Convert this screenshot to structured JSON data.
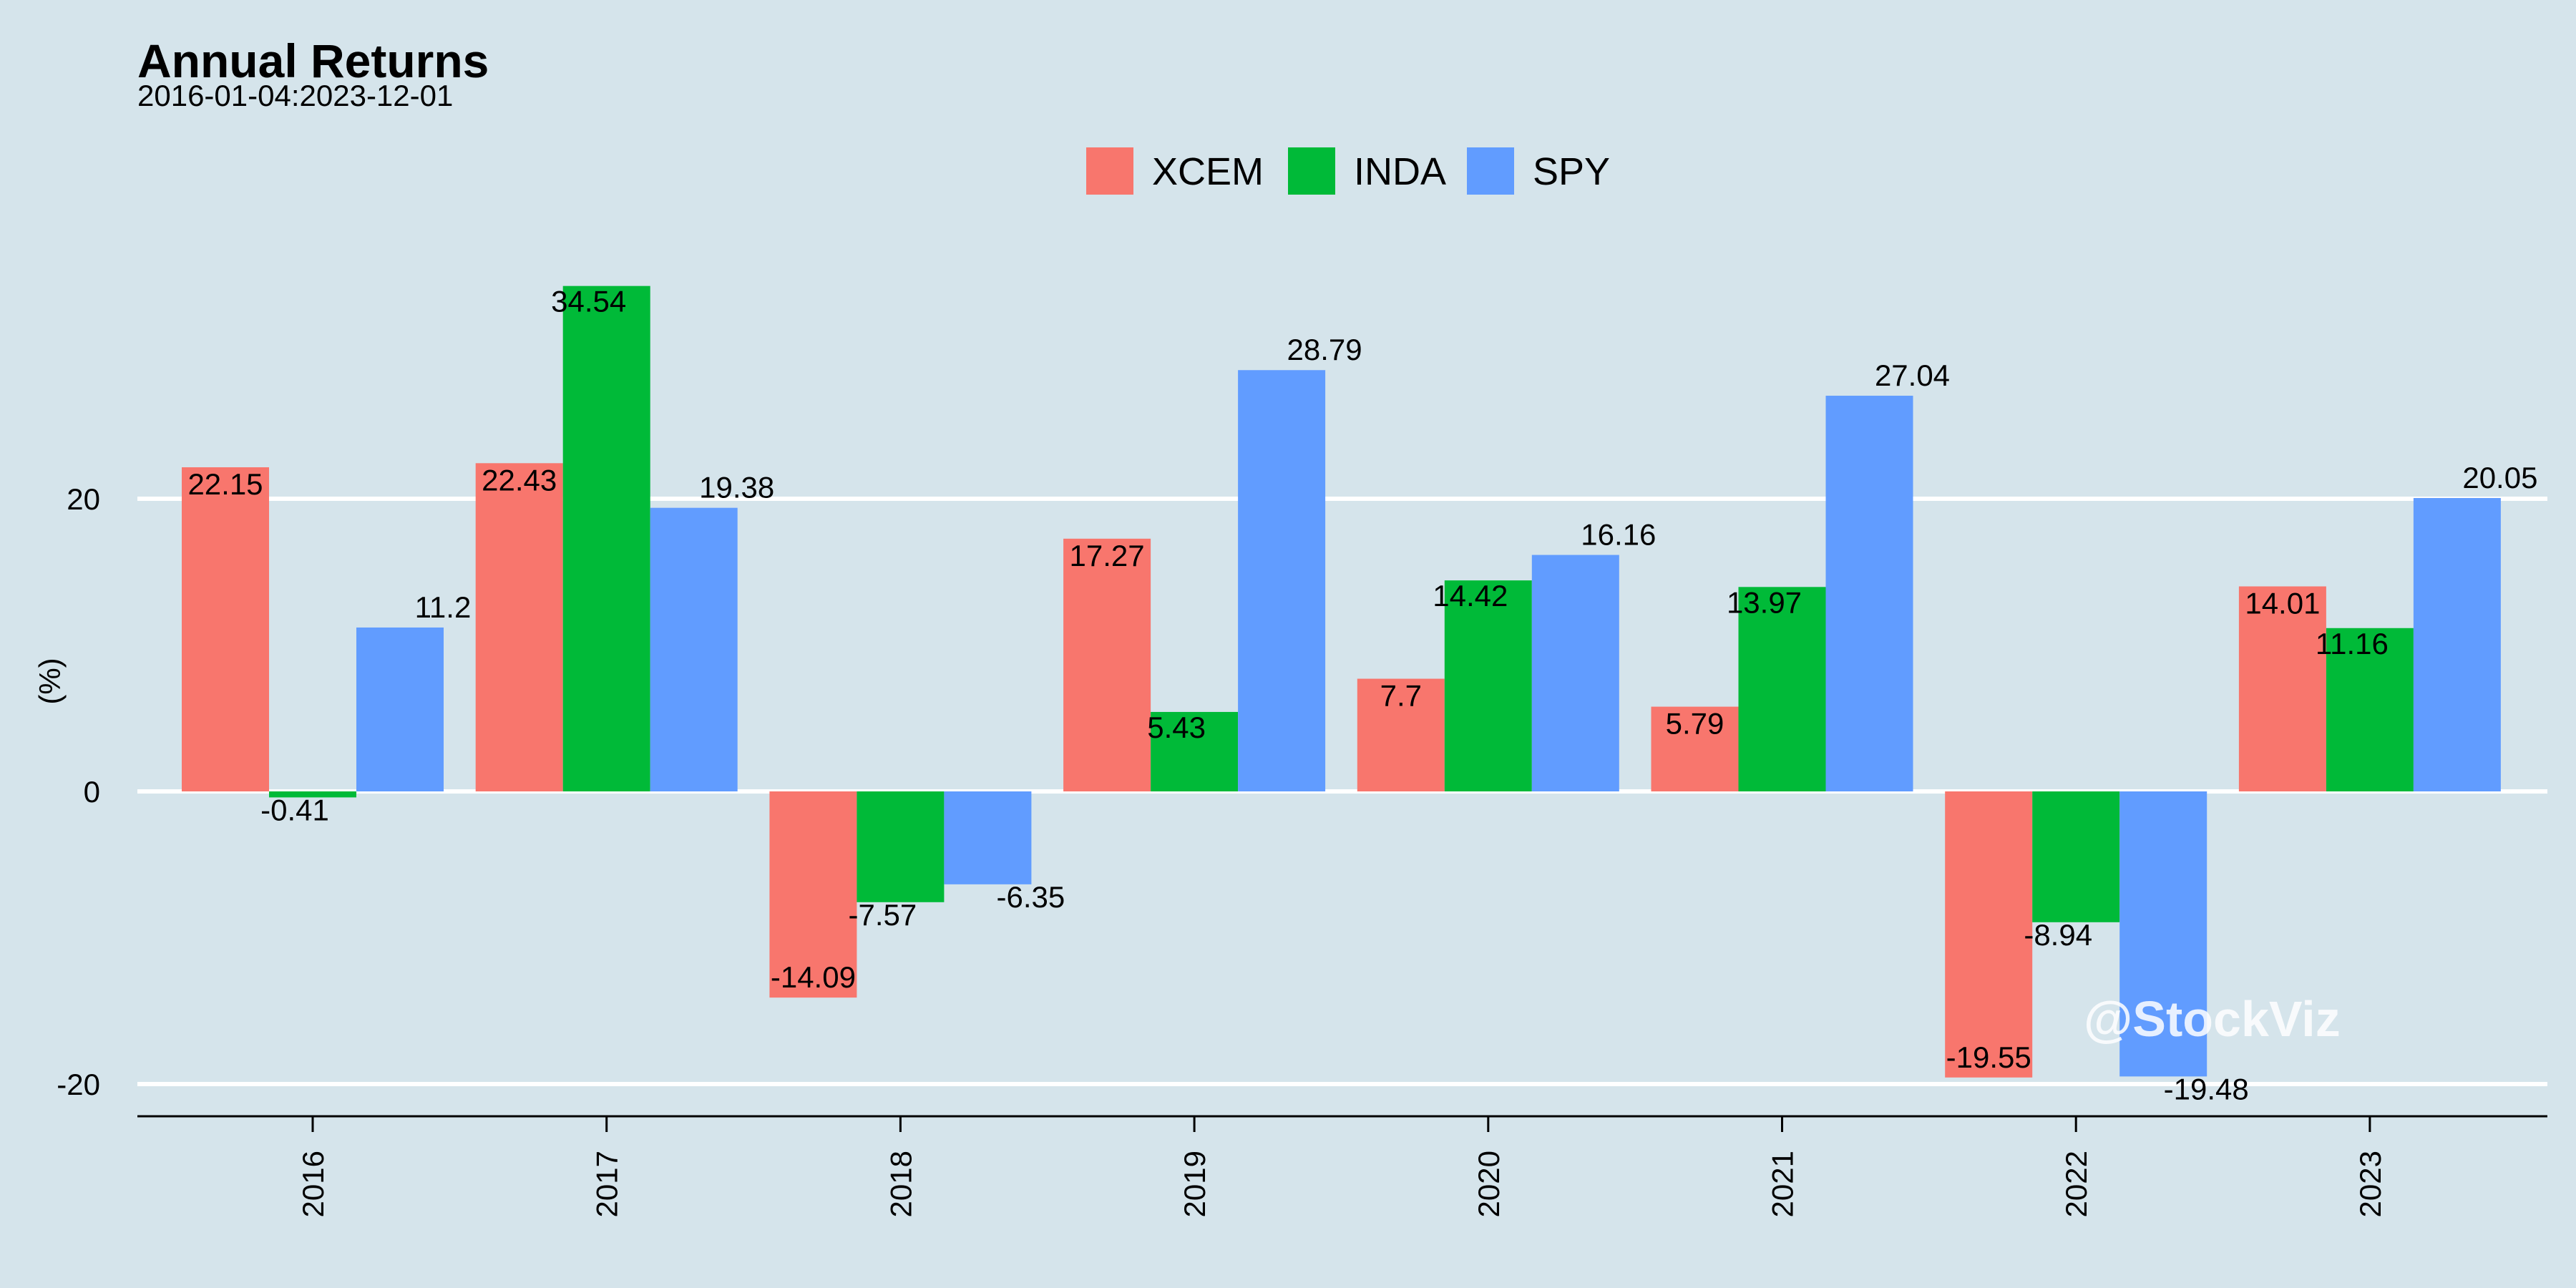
{
  "chart_data": {
    "type": "bar",
    "title": "Annual Returns",
    "subtitle": "2016-01-04:2023-12-01",
    "ylabel": "(%)",
    "xlabel": "",
    "categories": [
      "2016",
      "2017",
      "2018",
      "2019",
      "2020",
      "2021",
      "2022",
      "2023"
    ],
    "series": [
      {
        "name": "XCEM",
        "color": "#f8766d",
        "values": [
          22.15,
          22.43,
          -14.09,
          17.27,
          7.7,
          5.79,
          -19.55,
          14.01
        ]
      },
      {
        "name": "INDA",
        "color": "#00ba38",
        "values": [
          -0.41,
          34.54,
          -7.57,
          5.43,
          14.42,
          13.97,
          -8.94,
          11.16
        ]
      },
      {
        "name": "SPY",
        "color": "#619cff",
        "values": [
          11.2,
          19.38,
          -6.35,
          28.79,
          16.16,
          27.04,
          -19.48,
          20.05
        ]
      }
    ],
    "yticks": [
      -20,
      0,
      20
    ],
    "ylim": [
      -22,
      36
    ],
    "grid": true,
    "legend_position": "top"
  },
  "watermark": "@StockViz"
}
